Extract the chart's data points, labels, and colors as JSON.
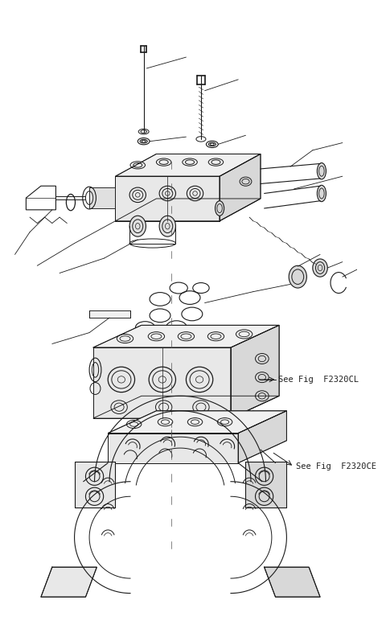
{
  "bg_color": "#ffffff",
  "line_color": "#1a1a1a",
  "label1": "See Fig  F2320CL",
  "label2": "See Fig  F2320CE",
  "figsize": [
    4.8,
    7.92
  ],
  "dpi": 100,
  "lw": 0.65
}
